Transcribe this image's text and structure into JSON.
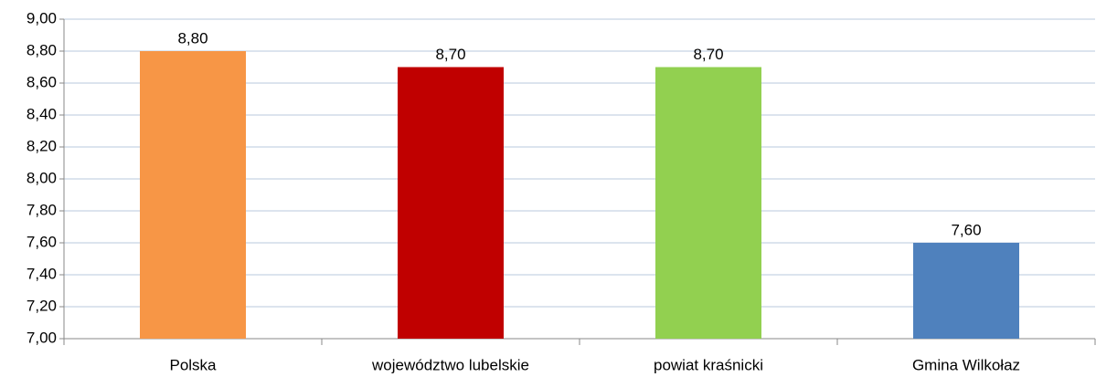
{
  "chart_data": {
    "type": "bar",
    "categories": [
      "Polska",
      "województwo lubelskie",
      "powiat kraśnicki",
      "Gmina Wilkołaz"
    ],
    "values": [
      8.8,
      8.7,
      8.7,
      7.6
    ],
    "value_labels": [
      "8,80",
      "8,70",
      "8,70",
      "7,60"
    ],
    "colors": [
      "#f79646",
      "#c00000",
      "#92d050",
      "#4f81bd"
    ],
    "ylim": [
      7,
      9
    ],
    "yticks": [
      {
        "value": 7,
        "label": "7,00"
      },
      {
        "value": 7.2,
        "label": "7,20"
      },
      {
        "value": 7.4,
        "label": "7,40"
      },
      {
        "value": 7.6,
        "label": "7,60"
      },
      {
        "value": 7.8,
        "label": "7,80"
      },
      {
        "value": 8,
        "label": "8,00"
      },
      {
        "value": 8.2,
        "label": "8,20"
      },
      {
        "value": 8.4,
        "label": "8,40"
      },
      {
        "value": 8.6,
        "label": "8,60"
      },
      {
        "value": 8.8,
        "label": "8,80"
      },
      {
        "value": 9,
        "label": "9,00"
      }
    ],
    "grid": true
  }
}
